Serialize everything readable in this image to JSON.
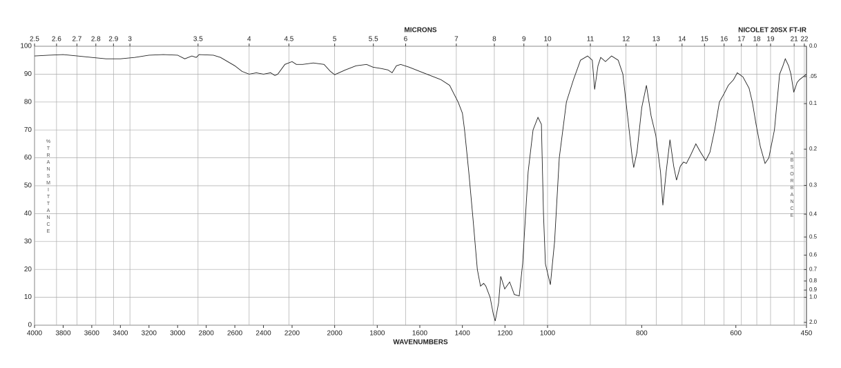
{
  "chart_data": {
    "type": "line",
    "instrument": "NICOLET 20SX FT-IR",
    "xlabel": "WAVENUMBERS",
    "x2label": "MICRONS",
    "ylabel": "%TRANSMITTANCE",
    "y2label": "ABSORBANCE",
    "xlim": [
      4000,
      450
    ],
    "xbreaks": [
      2200,
      1000
    ],
    "xticks": [
      4000,
      3800,
      3600,
      3400,
      3200,
      3000,
      2800,
      2600,
      2400,
      2200,
      2000,
      1800,
      1600,
      1400,
      1200,
      1000,
      800,
      600,
      450
    ],
    "x2ticks": [
      2.5,
      2.6,
      2.7,
      2.8,
      2.9,
      3,
      3.5,
      4,
      4.5,
      5,
      5.5,
      6,
      7,
      8,
      9,
      10,
      11,
      12,
      13,
      14,
      15,
      16,
      17,
      18,
      19,
      21,
      22
    ],
    "ylim": [
      0,
      100
    ],
    "yticks": [
      0,
      10,
      20,
      30,
      40,
      50,
      60,
      70,
      80,
      90,
      100
    ],
    "y2scale": "absorbance",
    "y2ticks": [
      {
        "value": 0,
        "label": "0.0"
      },
      {
        "value": 0.05,
        "label": ".05"
      },
      0.1,
      0.2,
      0.3,
      0.4,
      0.5,
      0.6,
      0.7,
      0.8,
      0.9,
      {
        "value": 1,
        "label": "1.0"
      },
      {
        "value": 2,
        "label": "2.0"
      }
    ],
    "grid": true,
    "x": [
      4000,
      3900,
      3800,
      3700,
      3600,
      3500,
      3400,
      3300,
      3200,
      3100,
      3000,
      2950,
      2900,
      2870,
      2850,
      2750,
      2700,
      2600,
      2550,
      2500,
      2450,
      2400,
      2350,
      2320,
      2300,
      2250,
      2200,
      2180,
      2150,
      2100,
      2050,
      2020,
      2000,
      1950,
      1900,
      1850,
      1820,
      1780,
      1750,
      1730,
      1710,
      1690,
      1650,
      1600,
      1550,
      1500,
      1460,
      1440,
      1420,
      1400,
      1390,
      1370,
      1350,
      1330,
      1315,
      1300,
      1290,
      1270,
      1255,
      1246,
      1230,
      1220,
      1201,
      1178,
      1156,
      1133,
      1117,
      1091,
      1068,
      1045,
      1029,
      1019,
      1010,
      994,
      985,
      975,
      960,
      945,
      930,
      915,
      905,
      900,
      893,
      887,
      877,
      864,
      850,
      840,
      830,
      820,
      817,
      810,
      800,
      790,
      780,
      770,
      760,
      755,
      748,
      740,
      732,
      726,
      718,
      711,
      705,
      696,
      685,
      675,
      664,
      655,
      645,
      635,
      625,
      616,
      605,
      597,
      585,
      572,
      565,
      557,
      548,
      538,
      530,
      518,
      507,
      500,
      495,
      488,
      483,
      477,
      470,
      465,
      450
    ],
    "series": [
      {
        "name": "spectrum",
        "color": "#222222",
        "values": [
          96.5,
          96.8,
          97,
          96.5,
          96,
          95.5,
          95.5,
          96,
          96.8,
          97,
          96.8,
          95.5,
          96.5,
          96,
          97,
          96.8,
          96,
          93,
          91,
          90,
          90.5,
          90,
          90.5,
          89.5,
          90,
          93.5,
          94.5,
          93.5,
          93.5,
          94,
          93.5,
          91,
          89.8,
          91.5,
          93,
          93.5,
          92.5,
          92,
          91.5,
          90.5,
          93,
          93.5,
          92.5,
          91,
          89.5,
          88,
          86,
          83,
          80,
          76,
          70,
          55,
          38,
          20,
          14,
          15,
          14,
          10,
          4,
          1.5,
          8,
          17.5,
          13,
          15.5,
          11,
          10.5,
          22,
          55,
          70,
          74.5,
          72,
          40,
          22,
          14.5,
          30,
          60,
          80,
          88,
          95,
          96.5,
          95,
          84.5,
          93,
          96,
          94.5,
          96.5,
          95,
          90,
          75,
          60,
          56.5,
          62,
          78,
          86,
          75,
          68,
          55,
          43,
          55,
          66.5,
          57,
          52,
          57,
          58.5,
          58,
          61,
          65,
          62,
          59,
          62,
          70,
          80,
          83,
          86,
          88,
          90.5,
          89,
          85,
          80,
          72,
          64,
          58,
          60,
          70,
          90,
          93,
          95.5,
          93,
          90,
          83.5,
          87,
          88,
          90
        ]
      }
    ]
  }
}
